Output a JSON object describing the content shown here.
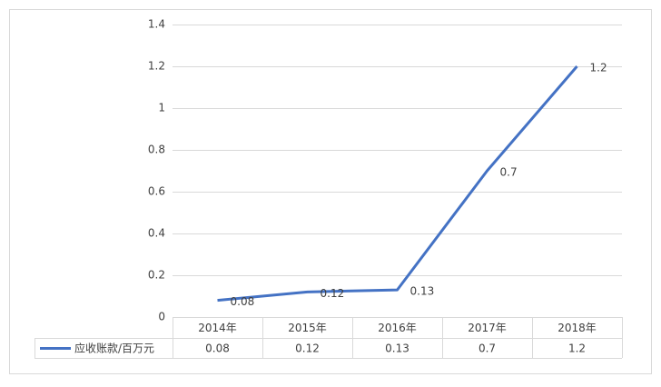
{
  "chart_data": {
    "type": "line",
    "categories": [
      "2014年",
      "2015年",
      "2016年",
      "2017年",
      "2018年"
    ],
    "series": [
      {
        "name": "应收账款/百万元",
        "color": "#4472c4",
        "values": [
          0.08,
          0.12,
          0.13,
          0.7,
          1.2
        ]
      }
    ],
    "ylim": [
      0,
      1.4
    ],
    "yticks": [
      0,
      0.2,
      0.4,
      0.6,
      0.8,
      1,
      1.2,
      1.4
    ],
    "grid": true
  }
}
